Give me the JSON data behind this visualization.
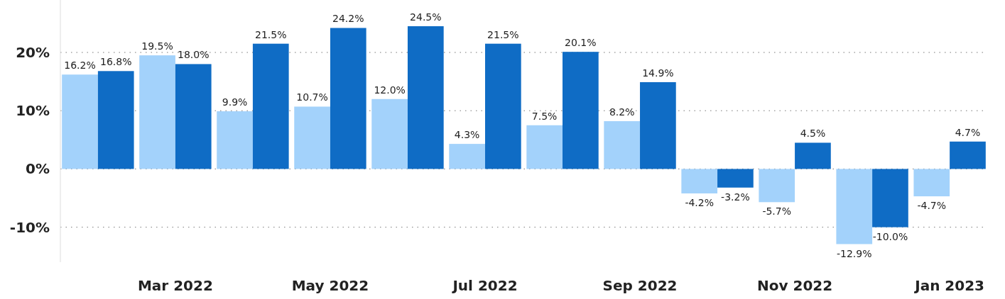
{
  "chart_data": {
    "type": "bar",
    "categories": [
      null,
      "Mar 2022",
      null,
      "May 2022",
      null,
      "Jul 2022",
      null,
      "Sep 2022",
      null,
      "Nov 2022",
      null,
      "Jan 2023"
    ],
    "series": [
      {
        "color": "#a3d2fb",
        "values": [
          16.2,
          19.5,
          9.9,
          10.7,
          12.0,
          4.3,
          7.5,
          8.2,
          -4.2,
          -5.7,
          -12.9,
          -4.7
        ],
        "value_labels": [
          "16.2%",
          "19.5%",
          "9.9%",
          "10.7%",
          "12.0%",
          "4.3%",
          "7.5%",
          "8.2%",
          "-4.2%",
          "-5.7%",
          "-12.9%",
          "-4.7%"
        ]
      },
      {
        "color": "#0f6cc5",
        "values": [
          16.8,
          18.0,
          21.5,
          24.2,
          24.5,
          21.5,
          20.1,
          14.9,
          -3.2,
          4.5,
          -10.0,
          4.7
        ],
        "value_labels": [
          "16.8%",
          "18.0%",
          "21.5%",
          "24.2%",
          "24.5%",
          "21.5%",
          "20.1%",
          "14.9%",
          "-3.2%",
          "4.5%",
          "-10.0%",
          "4.7%"
        ]
      }
    ],
    "ylim": [
      -16,
      29
    ],
    "yticks": [
      {
        "value": -10,
        "label": "-10%"
      },
      {
        "value": 0,
        "label": "0%"
      },
      {
        "value": 10,
        "label": "10%"
      },
      {
        "value": 20,
        "label": "20%"
      }
    ],
    "grid": "y"
  }
}
